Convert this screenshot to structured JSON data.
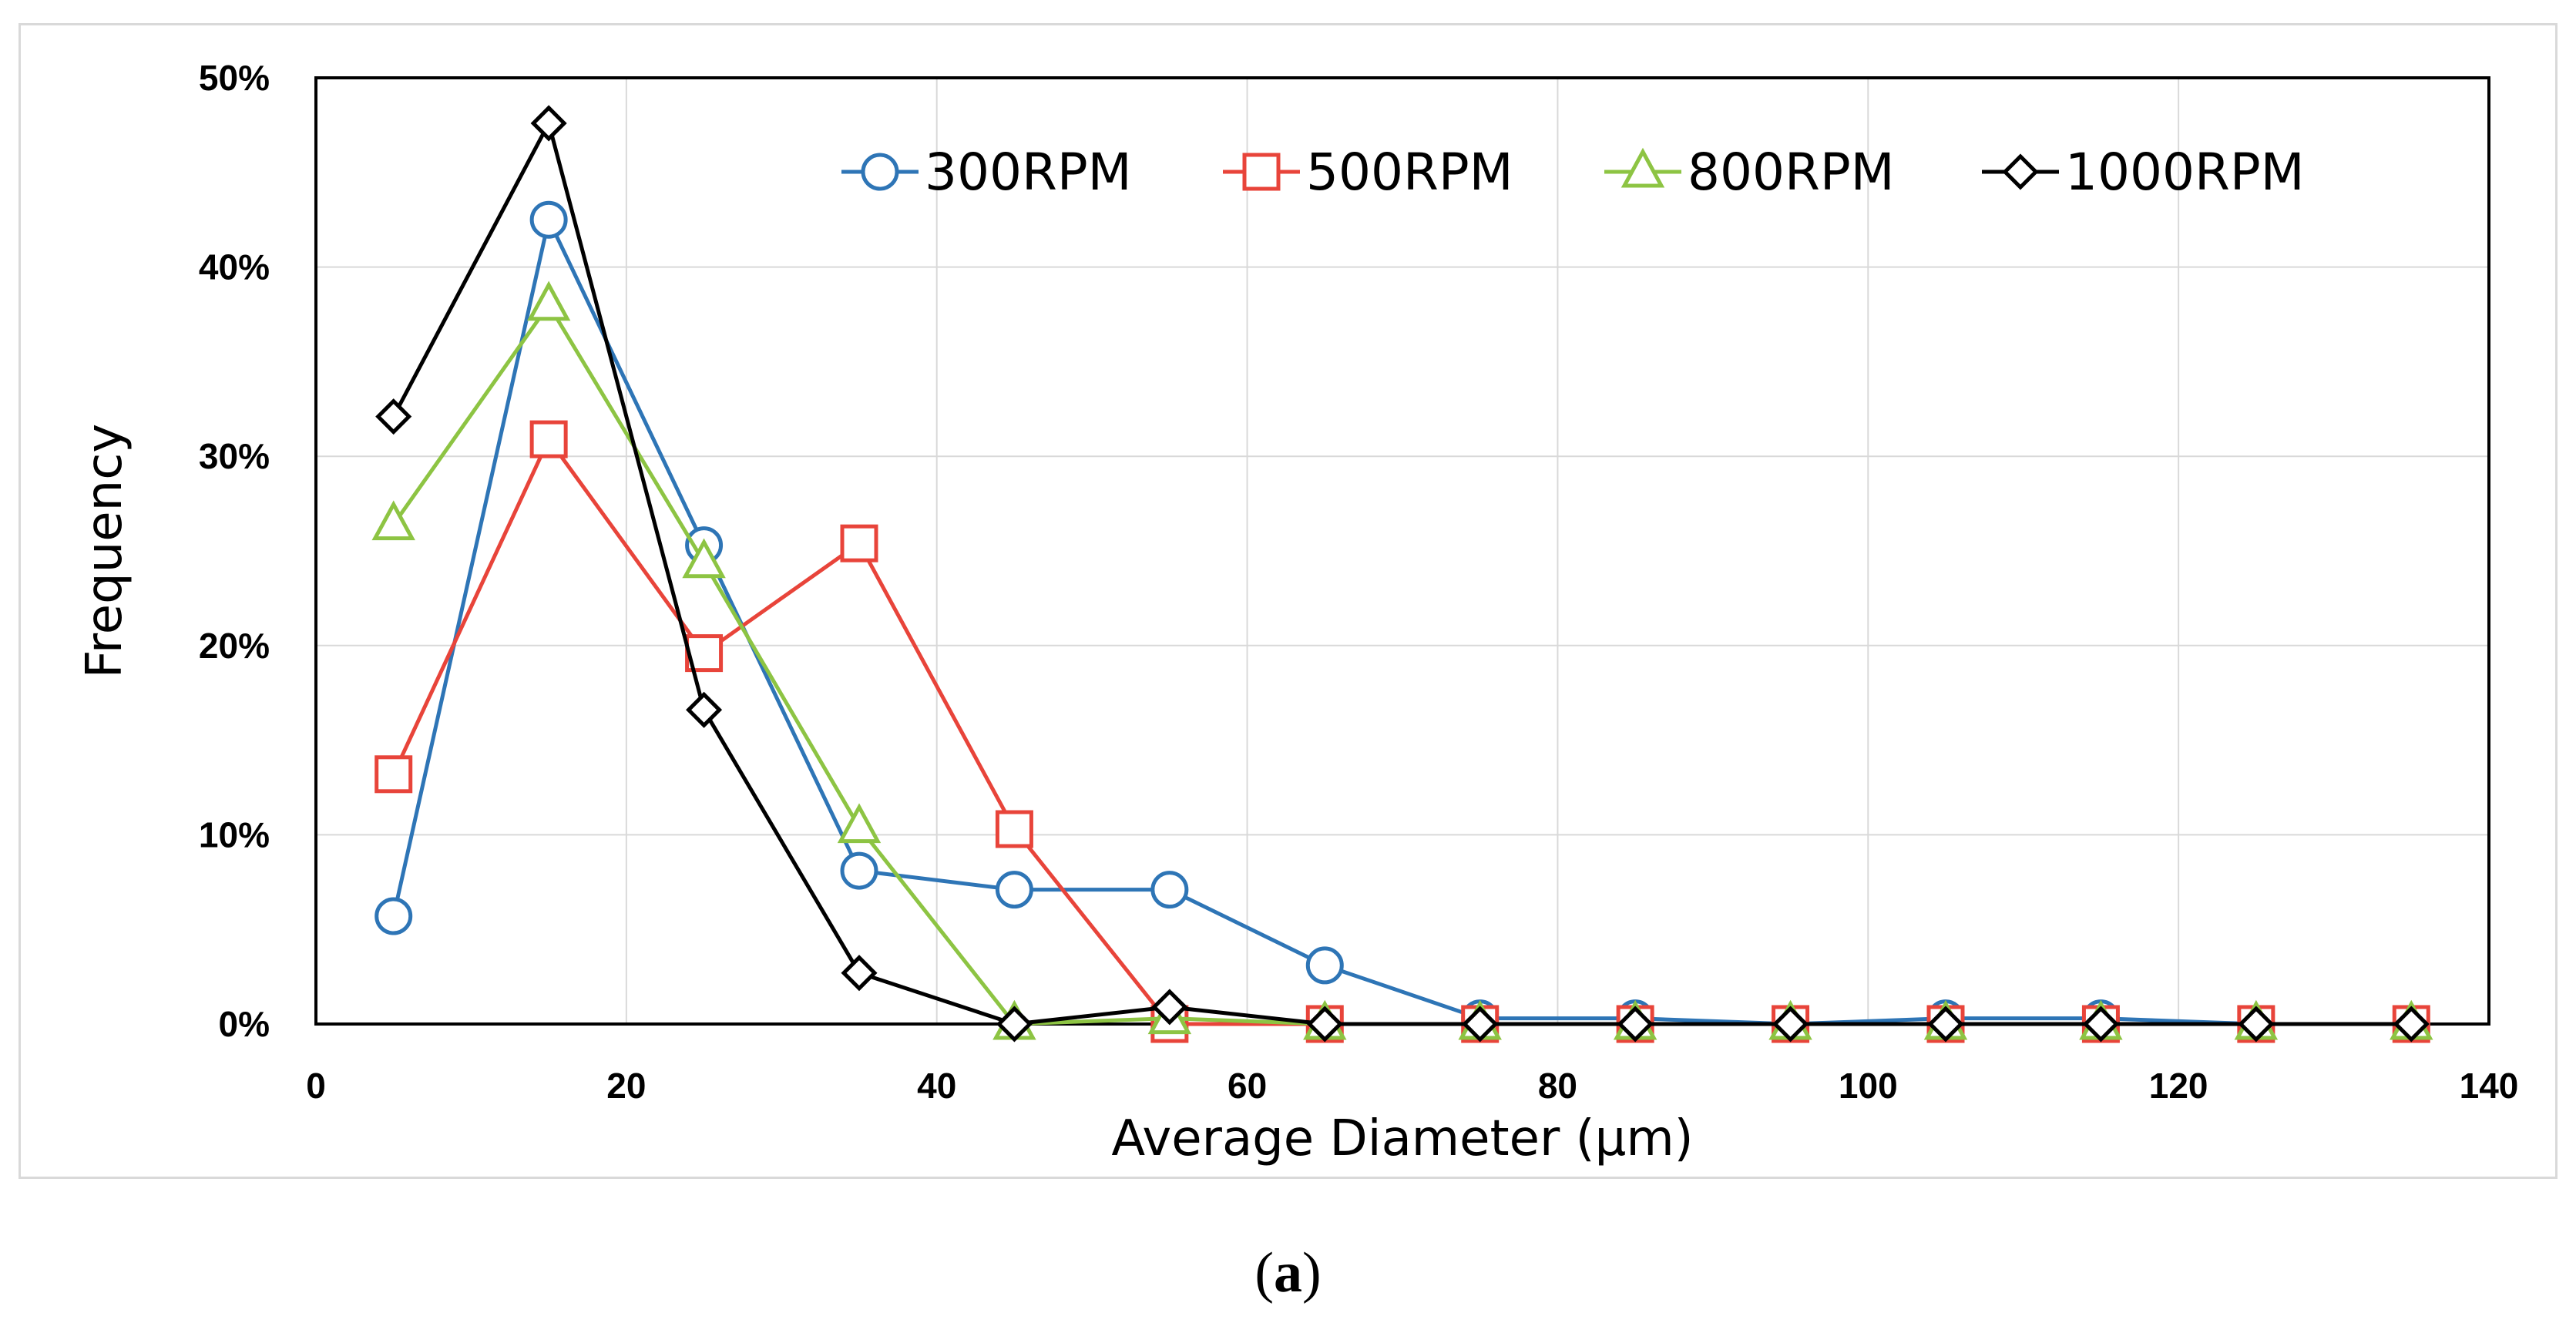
{
  "chart_data": {
    "type": "line",
    "title": "",
    "xlabel": "Average Diameter (μm)",
    "ylabel": "Frequency",
    "x": [
      5,
      15,
      25,
      35,
      45,
      55,
      65,
      75,
      85,
      95,
      105,
      115,
      125,
      135
    ],
    "xlim": [
      0,
      140
    ],
    "ylim": [
      0,
      0.5
    ],
    "x_ticks": [
      0,
      20,
      40,
      60,
      80,
      100,
      120,
      140
    ],
    "x_tick_labels": [
      "0",
      "20",
      "40",
      "60",
      "80",
      "100",
      "120",
      "140"
    ],
    "y_ticks": [
      0,
      0.1,
      0.2,
      0.3,
      0.4,
      0.5
    ],
    "y_tick_labels": [
      "0%",
      "10%",
      "20%",
      "30%",
      "40%",
      "50%"
    ],
    "grid": true,
    "legend_position": "top-right",
    "series": [
      {
        "name": "300RPM",
        "color": "#2E75B6",
        "marker": "circle",
        "values": [
          0.057,
          0.425,
          0.253,
          0.081,
          0.071,
          0.071,
          0.031,
          0.003,
          0.003,
          0.0,
          0.003,
          0.003,
          0.0,
          0.0
        ]
      },
      {
        "name": "500RPM",
        "color": "#E8443A",
        "marker": "square",
        "values": [
          0.132,
          0.309,
          0.196,
          0.254,
          0.103,
          0.0,
          0.0,
          0.0,
          0.0,
          0.0,
          0.0,
          0.0,
          0.0,
          0.0
        ]
      },
      {
        "name": "800RPM",
        "color": "#8DC443",
        "marker": "triangle",
        "values": [
          0.264,
          0.38,
          0.244,
          0.104,
          0.0,
          0.003,
          0.0,
          0.0,
          0.0,
          0.0,
          0.0,
          0.0,
          0.0,
          0.0
        ]
      },
      {
        "name": "1000RPM",
        "color": "#000000",
        "marker": "diamond",
        "values": [
          0.321,
          0.476,
          0.166,
          0.027,
          0.0,
          0.009,
          0.0,
          0.0,
          0.0,
          0.0,
          0.0,
          0.0,
          0.0,
          0.0
        ]
      }
    ]
  },
  "caption": {
    "open": "(",
    "letter": "a",
    "close": ")"
  }
}
